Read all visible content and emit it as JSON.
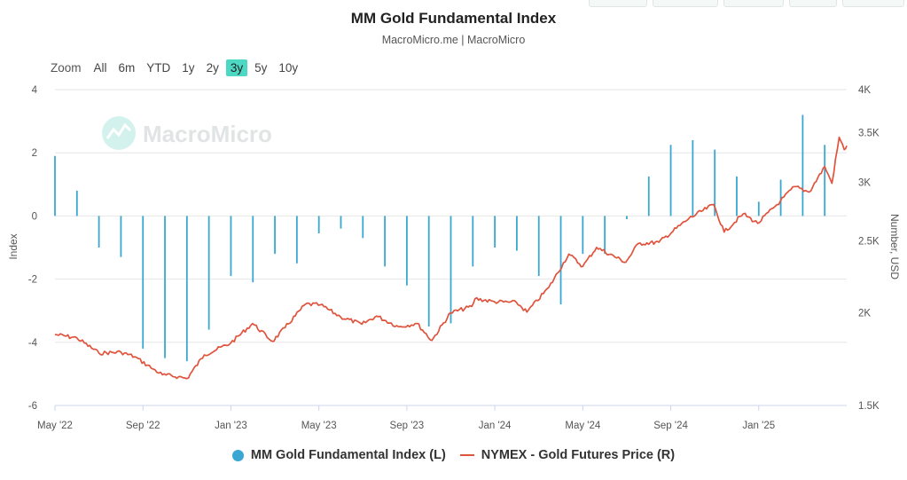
{
  "header": {
    "title": "MM Gold Fundamental Index",
    "source": "MacroMicro.me | MacroMicro"
  },
  "zoom": {
    "label": "Zoom",
    "options": [
      "All",
      "6m",
      "YTD",
      "1y",
      "2y",
      "3y",
      "5y",
      "10y"
    ],
    "active": "3y"
  },
  "watermark": {
    "text": "MacroMicro"
  },
  "colors": {
    "index_bar": "#3aa7d2",
    "gold_line": "#e0533c",
    "active_zoom": "#4dd8c4"
  },
  "chart_data": {
    "type": "bar+line",
    "title": "MM Gold Fundamental Index",
    "subtitle": "MacroMicro.me | MacroMicro",
    "x_ticks": [
      {
        "date": "2022-05",
        "label": "May '22"
      },
      {
        "date": "2022-09",
        "label": "Sep '22"
      },
      {
        "date": "2023-01",
        "label": "Jan '23"
      },
      {
        "date": "2023-05",
        "label": "May '23"
      },
      {
        "date": "2023-09",
        "label": "Sep '23"
      },
      {
        "date": "2024-01",
        "label": "Jan '24"
      },
      {
        "date": "2024-05",
        "label": "May '24"
      },
      {
        "date": "2024-09",
        "label": "Sep '24"
      },
      {
        "date": "2025-01",
        "label": "Jan '25"
      }
    ],
    "x_range": [
      "2022-05",
      "2025-05"
    ],
    "left_axis": {
      "label": "Index",
      "min": -6,
      "max": 4,
      "ticks": [
        -6,
        -4,
        -2,
        0,
        2,
        4
      ],
      "tick_labels": [
        "-6",
        "-4",
        "-2",
        "0",
        "2",
        "4"
      ]
    },
    "right_axis": {
      "label": "Number, USD",
      "scale": "log",
      "min": 1500,
      "max": 4000,
      "ticks": [
        1500,
        2000,
        2500,
        3000,
        3500,
        4000
      ],
      "tick_labels": [
        "1.5K",
        "2K",
        "2.5K",
        "3K",
        "3.5K",
        "4K"
      ]
    },
    "series": [
      {
        "name": "MM Gold Fundamental Index (L)",
        "type": "bar",
        "axis": "left",
        "color": "#3aa7d2",
        "data": [
          [
            "2022-05",
            1.9
          ],
          [
            "2022-06",
            0.8
          ],
          [
            "2022-07",
            -1.0
          ],
          [
            "2022-08",
            -1.3
          ],
          [
            "2022-09",
            -4.2
          ],
          [
            "2022-10",
            -4.5
          ],
          [
            "2022-11",
            -4.6
          ],
          [
            "2022-12",
            -3.6
          ],
          [
            "2023-01",
            -1.9
          ],
          [
            "2023-02",
            -2.1
          ],
          [
            "2023-03",
            -1.2
          ],
          [
            "2023-04",
            -1.5
          ],
          [
            "2023-05",
            -0.55
          ],
          [
            "2023-06",
            -0.4
          ],
          [
            "2023-07",
            -0.7
          ],
          [
            "2023-08",
            -1.6
          ],
          [
            "2023-09",
            -2.2
          ],
          [
            "2023-10",
            -3.5
          ],
          [
            "2023-11",
            -3.4
          ],
          [
            "2023-12",
            -1.6
          ],
          [
            "2024-01",
            -1.0
          ],
          [
            "2024-02",
            -1.1
          ],
          [
            "2024-03",
            -1.9
          ],
          [
            "2024-04",
            -2.8
          ],
          [
            "2024-05",
            -1.2
          ],
          [
            "2024-06",
            -1.2
          ],
          [
            "2024-07",
            -0.1
          ],
          [
            "2024-08",
            1.25
          ],
          [
            "2024-09",
            2.25
          ],
          [
            "2024-10",
            2.4
          ],
          [
            "2024-11",
            2.1
          ],
          [
            "2024-12",
            1.25
          ],
          [
            "2025-01",
            0.45
          ],
          [
            "2025-02",
            1.15
          ],
          [
            "2025-03",
            3.2
          ],
          [
            "2025-04",
            2.25
          ]
        ]
      },
      {
        "name": "NYMEX - Gold Futures Price (R)",
        "type": "line",
        "axis": "right",
        "color": "#e0533c",
        "data": [
          [
            "2022-05-01",
            1870
          ],
          [
            "2022-06-01",
            1850
          ],
          [
            "2022-07-01",
            1765
          ],
          [
            "2022-08-01",
            1770
          ],
          [
            "2022-08-20",
            1745
          ],
          [
            "2022-09-15",
            1680
          ],
          [
            "2022-09-28",
            1650
          ],
          [
            "2022-10-20",
            1640
          ],
          [
            "2022-11-01",
            1630
          ],
          [
            "2022-11-25",
            1755
          ],
          [
            "2022-12-31",
            1820
          ],
          [
            "2023-01-31",
            1935
          ],
          [
            "2023-02-28",
            1830
          ],
          [
            "2023-03-15",
            1910
          ],
          [
            "2023-04-13",
            2055
          ],
          [
            "2023-05-03",
            2050
          ],
          [
            "2023-05-31",
            1975
          ],
          [
            "2023-06-30",
            1930
          ],
          [
            "2023-07-20",
            1980
          ],
          [
            "2023-08-20",
            1915
          ],
          [
            "2023-09-15",
            1935
          ],
          [
            "2023-10-05",
            1835
          ],
          [
            "2023-10-31",
            2000
          ],
          [
            "2023-11-30",
            2040
          ],
          [
            "2023-12-04",
            2090
          ],
          [
            "2023-12-31",
            2070
          ],
          [
            "2024-01-31",
            2065
          ],
          [
            "2024-02-15",
            2005
          ],
          [
            "2024-03-15",
            2165
          ],
          [
            "2024-04-12",
            2400
          ],
          [
            "2024-05-01",
            2310
          ],
          [
            "2024-05-20",
            2450
          ],
          [
            "2024-06-30",
            2340
          ],
          [
            "2024-07-17",
            2480
          ],
          [
            "2024-08-15",
            2490
          ],
          [
            "2024-09-26",
            2680
          ],
          [
            "2024-10-30",
            2800
          ],
          [
            "2024-11-14",
            2570
          ],
          [
            "2024-12-10",
            2720
          ],
          [
            "2024-12-30",
            2640
          ],
          [
            "2025-01-31",
            2830
          ],
          [
            "2025-02-20",
            2960
          ],
          [
            "2025-03-10",
            2910
          ],
          [
            "2025-04-01",
            3150
          ],
          [
            "2025-04-11",
            2990
          ],
          [
            "2025-04-21",
            3450
          ],
          [
            "2025-04-28",
            3320
          ],
          [
            "2025-05-01",
            3360
          ]
        ]
      }
    ],
    "legend": [
      "MM Gold Fundamental Index (L)",
      "NYMEX - Gold Futures Price (R)"
    ],
    "legend_position": "bottom-center",
    "grid": true
  }
}
